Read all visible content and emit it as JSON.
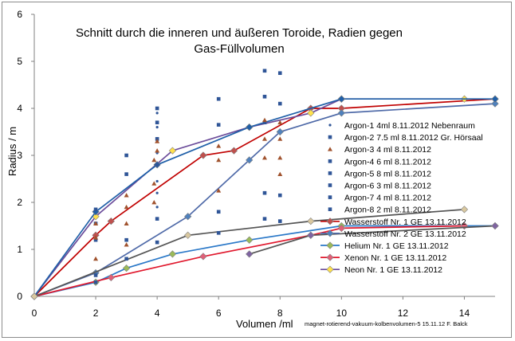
{
  "chart_data": {
    "type": "scatter",
    "title": "Schnitt durch die inneren und äußeren Toroide, Radien gegen Gas-Füllvolumen",
    "title_lines": [
      "Schnitt durch die inneren und äußeren Toroide, Radien gegen",
      "Gas-Füllvolumen"
    ],
    "xlabel": "Volumen /ml",
    "ylabel": "Radius / m",
    "credit": "magnet-rotierend-vakuum-kolbenvolumen-5   15.11.12 F. Balck",
    "xlim": [
      0,
      15
    ],
    "ylim": [
      0,
      6
    ],
    "xticks": [
      0,
      2,
      4,
      6,
      8,
      10,
      12,
      14
    ],
    "yticks": [
      0,
      1,
      2,
      3,
      4,
      5,
      6
    ],
    "grid": false,
    "legend_position": "right",
    "scatter_series": [
      {
        "name": "Argon-1  4ml  8.11.2012 Nebenraum",
        "color": "#2f5597",
        "marker": "dot",
        "points": [
          [
            4,
            3.9
          ],
          [
            4,
            3.6
          ],
          [
            4,
            3.3
          ],
          [
            4,
            3.05
          ],
          [
            4,
            2.8
          ],
          [
            4,
            2.45
          ],
          [
            4,
            2.2
          ],
          [
            4,
            1.9
          ]
        ]
      },
      {
        "name": "Argon-2  7.5 ml  8.11.2012 Gr. Hörsaal",
        "color": "#2f5597",
        "marker": "square",
        "points": [
          [
            2,
            1.85
          ],
          [
            2,
            1.55
          ],
          [
            2,
            1.2
          ],
          [
            2,
            0.45
          ],
          [
            2,
            0.3
          ],
          [
            3,
            3.0
          ],
          [
            3,
            2.6
          ],
          [
            3,
            1.2
          ],
          [
            3,
            0.8
          ],
          [
            4,
            4.0
          ],
          [
            4,
            3.7
          ],
          [
            4,
            3.35
          ],
          [
            4,
            2.8
          ],
          [
            4,
            1.65
          ],
          [
            4,
            1.15
          ],
          [
            6,
            4.2
          ],
          [
            6,
            3.65
          ],
          [
            6,
            1.8
          ],
          [
            6,
            1.35
          ],
          [
            7.5,
            4.8
          ],
          [
            7.5,
            4.25
          ],
          [
            7.5,
            3.7
          ],
          [
            7.5,
            2.2
          ],
          [
            7.5,
            1.65
          ],
          [
            8,
            4.75
          ],
          [
            8,
            4.1
          ],
          [
            8,
            2.15
          ],
          [
            8,
            1.6
          ]
        ]
      },
      {
        "name": "Argon-3 4 ml  8.11.2012",
        "color": "#a0522d",
        "marker": "triangle",
        "points": [
          [
            2,
            1.55
          ],
          [
            2,
            1.25
          ],
          [
            2,
            0.8
          ],
          [
            3,
            2.15
          ],
          [
            3,
            1.9
          ],
          [
            3,
            1.55
          ],
          [
            3,
            1.1
          ],
          [
            3.9,
            2.9
          ],
          [
            3.9,
            2.4
          ],
          [
            3.9,
            2.0
          ],
          [
            4,
            3.3
          ],
          [
            4,
            3.1
          ],
          [
            6,
            3.2
          ],
          [
            6,
            2.9
          ],
          [
            6,
            2.25
          ],
          [
            7.5,
            3.75
          ],
          [
            7.5,
            3.35
          ],
          [
            7.5,
            2.95
          ],
          [
            8,
            3.7
          ],
          [
            8,
            3.35
          ],
          [
            8,
            2.95
          ],
          [
            8,
            2.6
          ]
        ]
      },
      {
        "name": "Argon-4 6 ml  8.11.2012",
        "color": "#2f5597",
        "marker": "square",
        "points": []
      },
      {
        "name": "Argon-5 8 ml  8.11.2012",
        "color": "#2f5597",
        "marker": "square",
        "points": []
      },
      {
        "name": "Argon-6 3 ml  8.11.2012",
        "color": "#2f5597",
        "marker": "square",
        "points": []
      },
      {
        "name": "Argon-7 4 ml  8.11.2012",
        "color": "#2f5597",
        "marker": "square",
        "points": []
      },
      {
        "name": "Argon-8 2 ml  8.11.2012",
        "color": "#2f5597",
        "marker": "square",
        "points": []
      }
    ],
    "line_series": [
      {
        "name": "Wasserstoff Nr. 1 GE 13.11.2012",
        "color": "#c00000",
        "marker": "diamond",
        "marker_color": "#c0504d",
        "points": [
          [
            0,
            0
          ],
          [
            2,
            1.3
          ],
          [
            2.5,
            1.6
          ],
          [
            5.5,
            3.0
          ],
          [
            6.5,
            3.1
          ],
          [
            9,
            4.0
          ],
          [
            10,
            4.0
          ],
          [
            15,
            4.2
          ]
        ]
      },
      {
        "name": "Wasserstoff Nr. 2 GE 13.11.2012",
        "color": "#4f6aa8",
        "marker": "diamond",
        "marker_color": "#4f81bd",
        "points": [
          [
            0,
            0
          ],
          [
            2,
            0.5
          ],
          [
            5,
            1.7
          ],
          [
            7,
            2.9
          ],
          [
            8,
            3.5
          ],
          [
            10,
            3.9
          ],
          [
            15,
            4.1
          ]
        ]
      },
      {
        "name": "Helium Nr. 1  GE 13.11.2012",
        "color": "#2a78c8",
        "marker": "diamond",
        "marker_color": "#9bbb59",
        "points": [
          [
            0,
            0
          ],
          [
            2,
            0.3
          ],
          [
            3,
            0.6
          ],
          [
            4.5,
            0.9
          ],
          [
            7,
            1.2
          ],
          [
            10,
            1.5
          ],
          [
            14,
            1.5
          ],
          [
            15,
            1.5
          ]
        ]
      },
      {
        "name": "Xenon Nr. 1  GE  13.11.2012",
        "color": "#e0182d",
        "marker": "diamond",
        "marker_color": "#e06078",
        "points": [
          [
            0,
            0
          ],
          [
            2.5,
            0.4
          ],
          [
            5.5,
            0.85
          ],
          [
            9,
            1.3
          ],
          [
            10,
            1.45
          ],
          [
            14,
            1.5
          ]
        ]
      },
      {
        "name": "Neon Nr. 1 GE  13.11.2012",
        "color": "#6b4c9a",
        "marker": "diamond",
        "marker_color": "#ffe14c",
        "points": [
          [
            0,
            0
          ],
          [
            2,
            1.7
          ],
          [
            4.5,
            3.1
          ],
          [
            7,
            3.6
          ],
          [
            9,
            3.9
          ],
          [
            10,
            4.2
          ],
          [
            14,
            4.2
          ]
        ]
      },
      {
        "name": "",
        "color": "#1f5fa8",
        "marker": "diamond",
        "marker_color": "#1f5fa8",
        "show_in_legend": false,
        "points": [
          [
            0,
            0
          ],
          [
            2,
            1.8
          ],
          [
            4,
            2.8
          ],
          [
            7,
            3.6
          ],
          [
            10,
            4.2
          ],
          [
            15,
            4.2
          ]
        ]
      },
      {
        "name": "",
        "color": "#555555",
        "marker": "diamond",
        "marker_color": "#d9c8a0",
        "show_in_legend": false,
        "points": [
          [
            0,
            0
          ],
          [
            5,
            1.3
          ],
          [
            9,
            1.6
          ],
          [
            14,
            1.85
          ]
        ]
      },
      {
        "name": "",
        "color": "#555555",
        "marker": "diamond",
        "marker_color": "#8064a2",
        "show_in_legend": false,
        "points": [
          [
            7,
            0.9
          ],
          [
            9,
            1.3
          ],
          [
            15,
            1.5
          ]
        ]
      }
    ]
  }
}
